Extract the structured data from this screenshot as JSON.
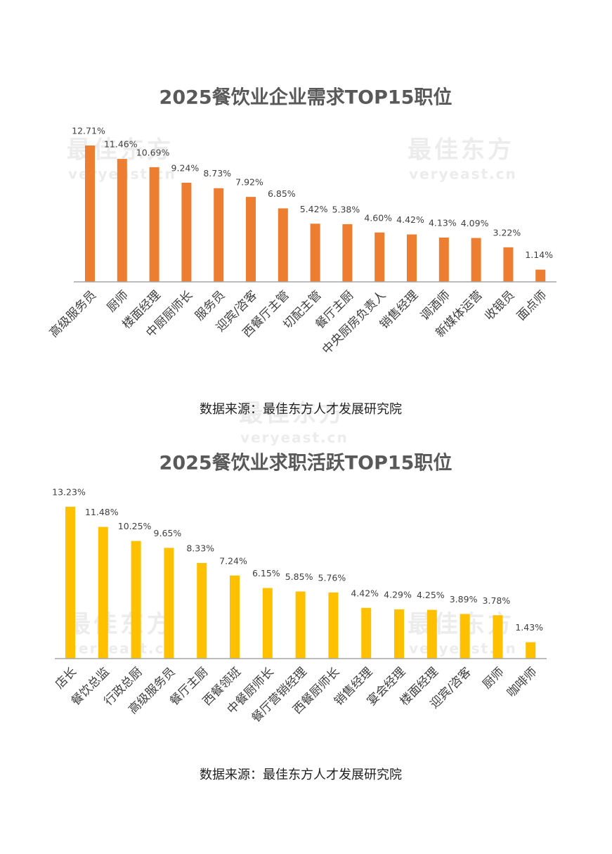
{
  "watermark": [
    "最佳东方",
    "veryeast.cn"
  ],
  "chart_data": [
    {
      "type": "bar",
      "title": "2025餐饮业企业需求TOP15职位",
      "color": "#ED7D31",
      "categories": [
        "高级服务员",
        "厨师",
        "楼面经理",
        "中厨厨师长",
        "服务员",
        "迎宾/咨客",
        "西餐厅主管",
        "切配主管",
        "餐厅主厨",
        "中央厨房负责人",
        "销售经理",
        "调酒师",
        "新媒体运营",
        "收银员",
        "面点师"
      ],
      "values": [
        12.71,
        11.46,
        10.69,
        9.24,
        8.73,
        7.92,
        6.85,
        5.42,
        5.38,
        4.6,
        4.42,
        4.13,
        4.09,
        3.22,
        1.14
      ],
      "value_labels": [
        "12.71%",
        "11.46%",
        "10.69%",
        "9.24%",
        "8.73%",
        "7.92%",
        "6.85%",
        "5.42%",
        "5.38%",
        "4.60%",
        "4.42%",
        "4.13%",
        "4.09%",
        "3.22%",
        "1.14%"
      ],
      "source": "数据来源：最佳东方人才发展研究院"
    },
    {
      "type": "bar",
      "title": "2025餐饮业求职活跃TOP15职位",
      "color": "#FFC000",
      "categories": [
        "店长",
        "餐饮总监",
        "行政总厨",
        "高级服务员",
        "餐厅主厨",
        "西餐领班",
        "中餐厨师长",
        "餐厅营销经理",
        "西餐厨师长",
        "销售经理",
        "宴会经理",
        "楼面经理",
        "迎宾/咨客",
        "厨师",
        "咖啡师"
      ],
      "values": [
        13.23,
        11.48,
        10.25,
        9.65,
        8.33,
        7.24,
        6.15,
        5.85,
        5.76,
        4.42,
        4.29,
        4.25,
        3.89,
        3.78,
        1.43
      ],
      "value_labels": [
        "13.23%",
        "11.48%",
        "10.25%",
        "9.65%",
        "8.33%",
        "7.24%",
        "6.15%",
        "5.85%",
        "5.76%",
        "4.42%",
        "4.29%",
        "4.25%",
        "3.89%",
        "3.78%",
        "1.43%"
      ],
      "source": "数据来源：最佳东方人才发展研究院"
    }
  ]
}
